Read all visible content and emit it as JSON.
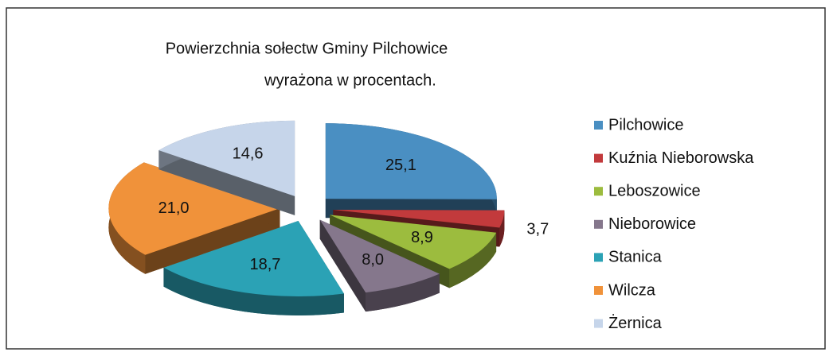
{
  "chart_data": {
    "type": "pie",
    "title": [
      "Powierzchnia sołectw Gminy Pilchowice",
      "wyrażona w procentach."
    ],
    "categories": [
      "Pilchowice",
      "Kuźnia Nieborowska",
      "Leboszowice",
      "Nieborowice",
      "Stanica",
      "Wilcza",
      "Żernica"
    ],
    "values": [
      25.1,
      3.7,
      8.9,
      8.0,
      18.7,
      21.0,
      14.6
    ],
    "value_labels": [
      "25,1",
      "3,7",
      "8,9",
      "8,0",
      "18,7",
      "21,0",
      "14,6"
    ],
    "colors": [
      "#4a8fc2",
      "#c23a3c",
      "#9cbc3e",
      "#85778c",
      "#2ba2b5",
      "#f0923a",
      "#c6d5ea"
    ],
    "legend": "right"
  }
}
